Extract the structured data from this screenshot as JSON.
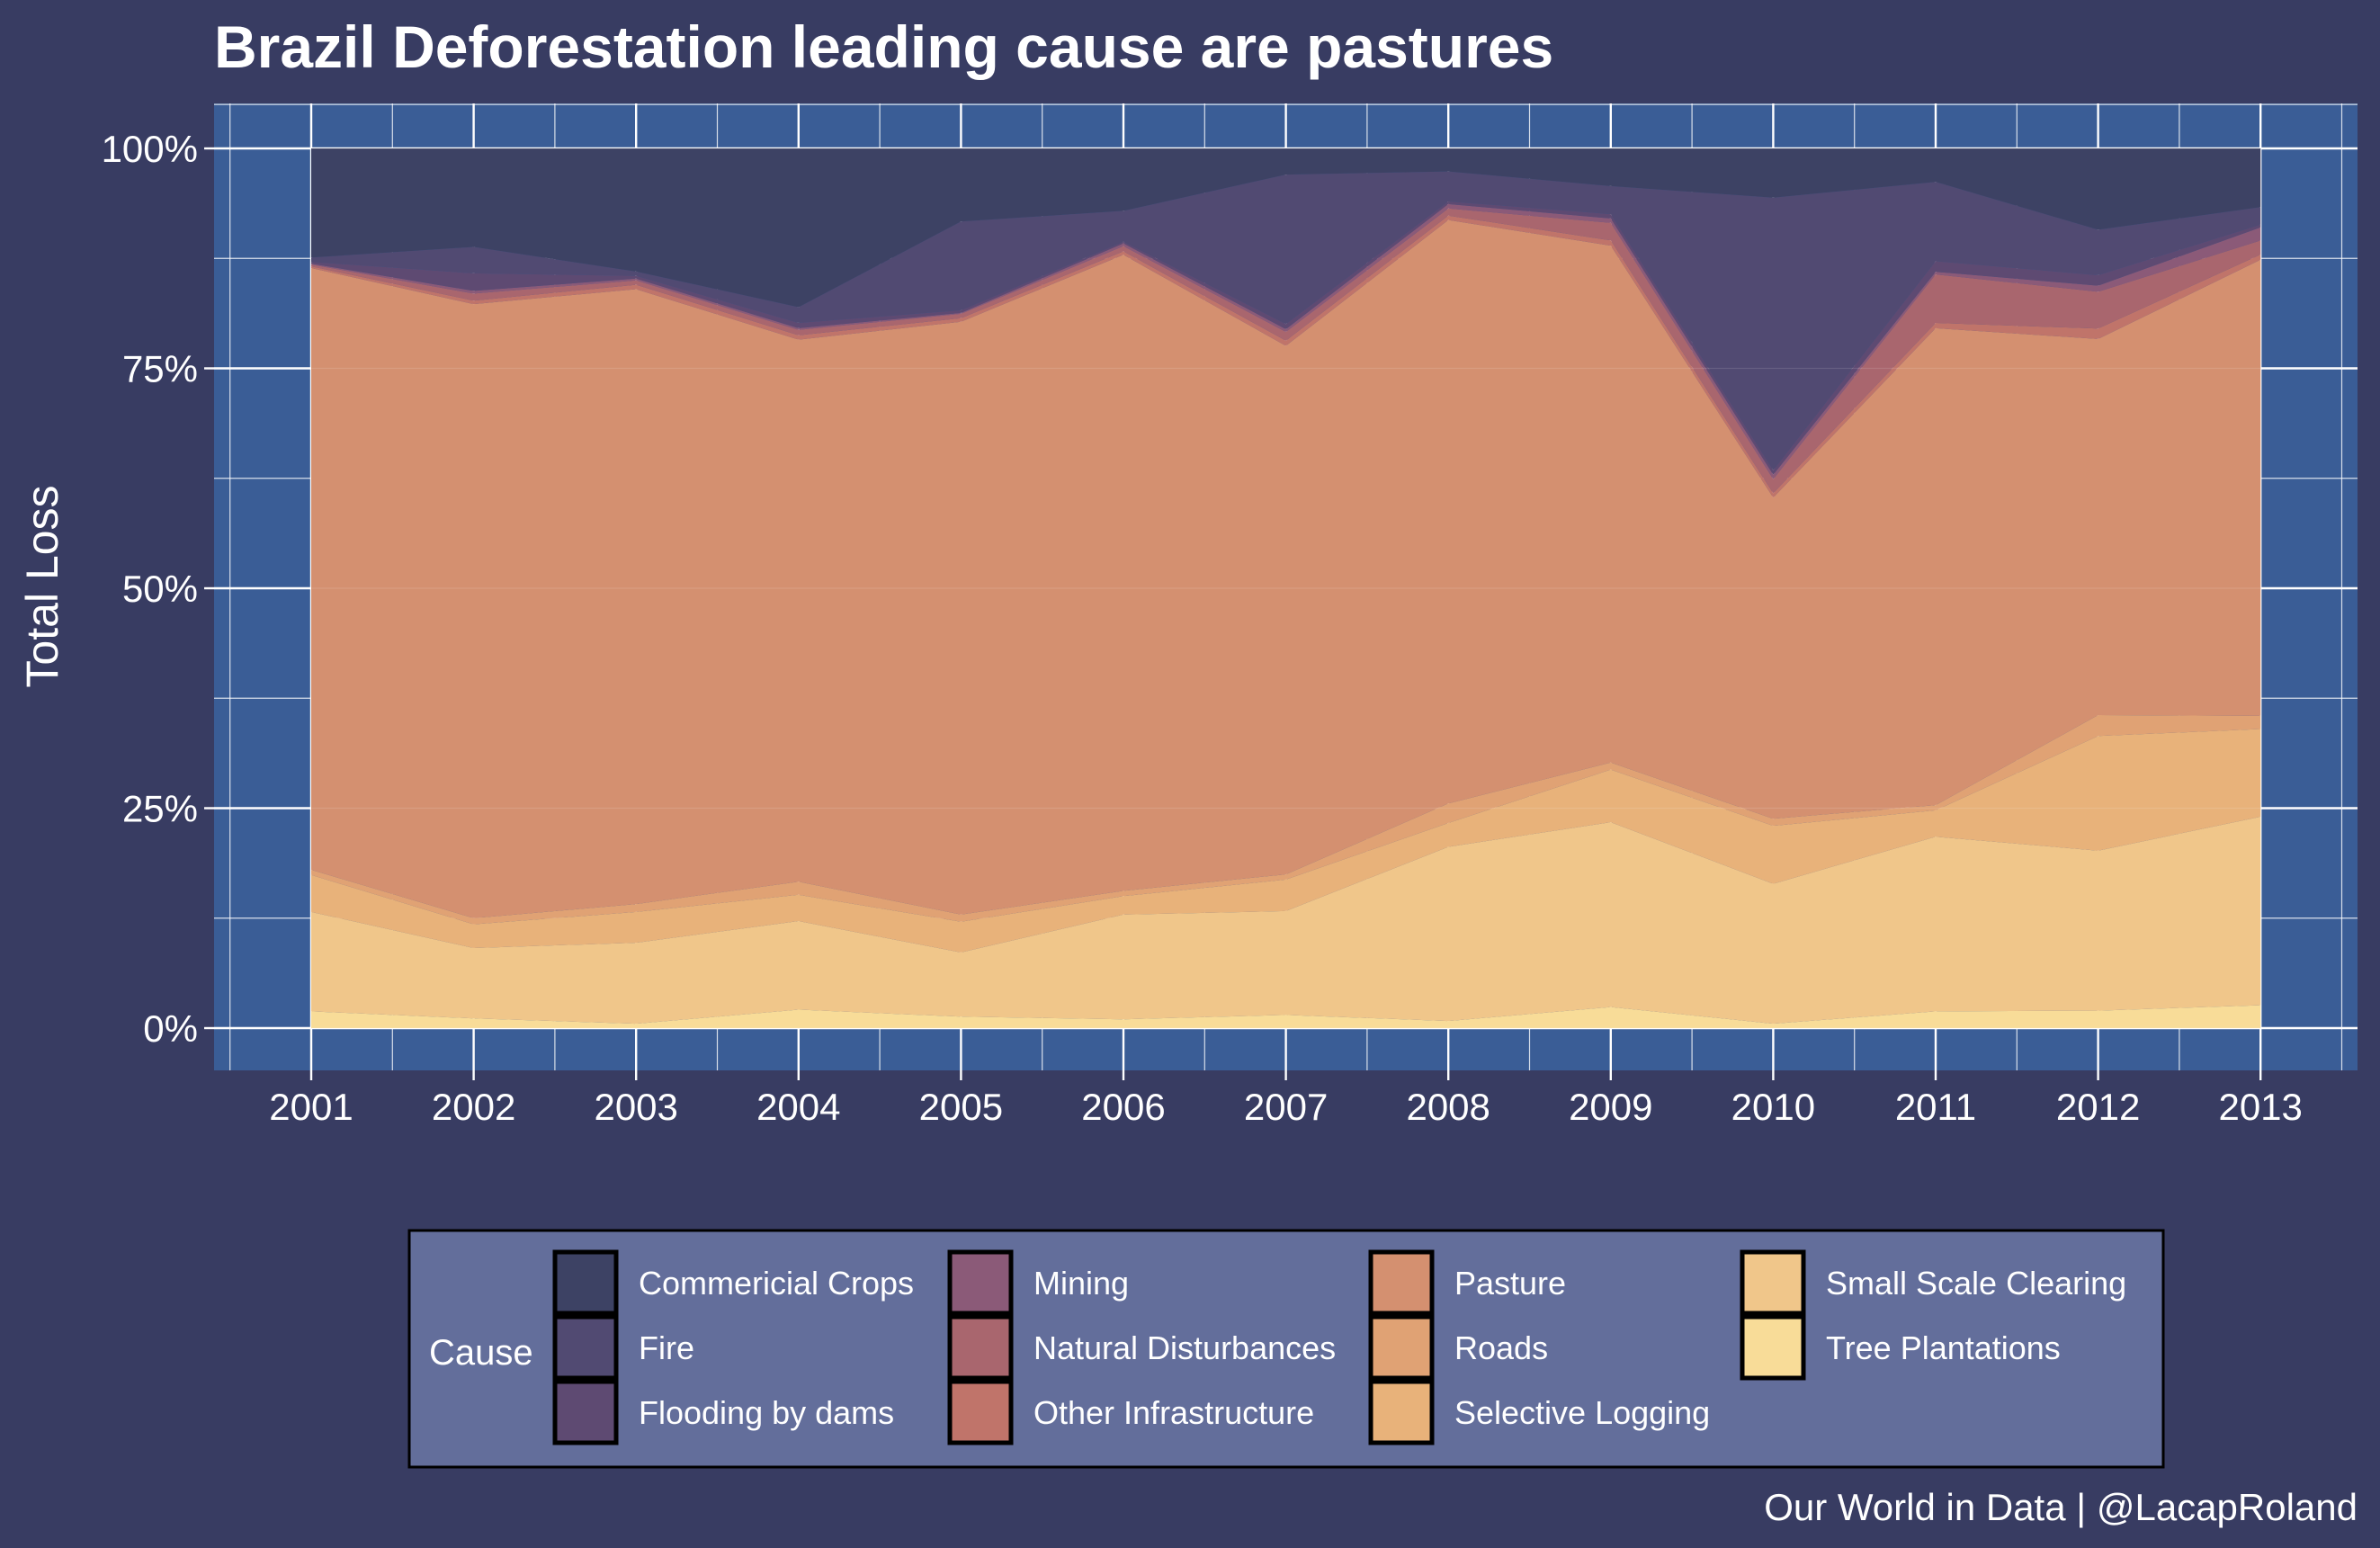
{
  "chart_data": {
    "type": "area",
    "stacking": "percent",
    "title": "Brazil Deforestation leading cause are pastures",
    "ylabel": "Total Loss",
    "xlabel": "",
    "x": [
      2001,
      2002,
      2003,
      2004,
      2005,
      2006,
      2007,
      2008,
      2009,
      2010,
      2011,
      2012,
      2013
    ],
    "x_tick_labels": [
      "2001",
      "2002",
      "2003",
      "2004",
      "2005",
      "2006",
      "2007",
      "2008",
      "2009",
      "2010",
      "2011",
      "2012",
      "2013"
    ],
    "y_tick_labels": [
      "0%",
      "25%",
      "50%",
      "75%",
      "100%"
    ],
    "ylim": [
      0,
      100
    ],
    "grid": true,
    "legend_title": "Cause",
    "legend_position": "bottom",
    "caption": "Our World in Data | @LacapRoland",
    "series": [
      {
        "name": "Commericial Crops",
        "color": "#3d4264",
        "values": [
          12.4,
          11.2,
          14.0,
          18.1,
          8.3,
          7.1,
          3.0,
          2.6,
          4.3,
          5.6,
          3.8,
          9.3,
          6.7
        ]
      },
      {
        "name": "Fire",
        "color": "#514a72",
        "values": [
          0.5,
          3.0,
          0.5,
          1.8,
          10.1,
          3.5,
          17.1,
          3.4,
          3.2,
          31.0,
          9.0,
          5.2,
          2.0
        ]
      },
      {
        "name": "Flooding by dams",
        "color": "#5e4a72",
        "values": [
          0.2,
          2.0,
          0.3,
          0.6,
          0.3,
          0.2,
          0.6,
          0.3,
          0.5,
          0.5,
          1.2,
          1.2,
          0.3
        ]
      },
      {
        "name": "Mining",
        "color": "#8b5a78",
        "values": [
          0.1,
          0.3,
          0.2,
          0.2,
          0.1,
          0.3,
          0.3,
          0.5,
          0.5,
          0.5,
          0.3,
          0.7,
          1.5
        ]
      },
      {
        "name": "Natural Disturbances",
        "color": "#a9666e",
        "values": [
          0.2,
          0.8,
          0.5,
          0.6,
          0.5,
          0.6,
          1.0,
          0.8,
          2.0,
          1.6,
          5.5,
          4.2,
          1.6
        ]
      },
      {
        "name": "Other Infrastructure",
        "color": "#c0746a",
        "values": [
          0.2,
          0.4,
          0.5,
          0.5,
          0.4,
          0.4,
          0.6,
          0.5,
          0.6,
          0.5,
          0.6,
          1.2,
          0.6
        ]
      },
      {
        "name": "Pasture",
        "color": "#d49070",
        "values": [
          68.4,
          69.8,
          69.9,
          61.8,
          67.4,
          72.3,
          60.5,
          66.0,
          59.0,
          36.5,
          54.1,
          43.0,
          52.0
        ]
      },
      {
        "name": "Roads",
        "color": "#e0a274",
        "values": [
          0.6,
          0.7,
          0.9,
          1.5,
          0.8,
          0.6,
          0.6,
          2.2,
          0.8,
          0.8,
          0.6,
          2.4,
          1.5
        ]
      },
      {
        "name": "Selective Logging",
        "color": "#e8b27a",
        "values": [
          4.2,
          2.7,
          3.5,
          3.0,
          3.5,
          2.1,
          3.6,
          2.7,
          6.0,
          6.6,
          3.0,
          13.1,
          10.0
        ]
      },
      {
        "name": "Small Scale Clearing",
        "color": "#f0c68a",
        "values": [
          11.3,
          8.0,
          9.2,
          10.1,
          7.3,
          11.9,
          11.9,
          19.7,
          21.1,
          15.9,
          19.8,
          18.3,
          21.5
        ]
      },
      {
        "name": "Tree Plantations",
        "color": "#f8dc98",
        "values": [
          1.9,
          1.1,
          0.5,
          2.1,
          1.3,
          1.0,
          1.5,
          0.8,
          2.4,
          0.5,
          1.9,
          2.0,
          2.6
        ]
      }
    ]
  },
  "colors": {
    "background": "#383c62",
    "panel": "#3a5d96",
    "grid": "#ffffff",
    "legend_background": "#636e9b",
    "legend_border": "#000000"
  }
}
